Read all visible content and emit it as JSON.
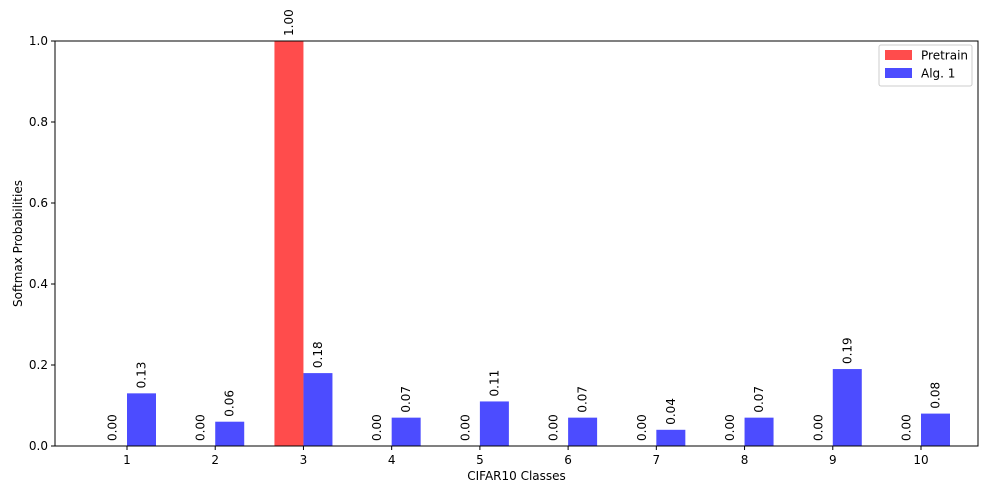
{
  "chart_data": {
    "type": "bar",
    "title": "",
    "xlabel": "CIFAR10 Classes",
    "ylabel": "Softmax Probabilities",
    "categories": [
      "1",
      "2",
      "3",
      "4",
      "5",
      "6",
      "7",
      "8",
      "9",
      "10"
    ],
    "ylim": [
      0,
      1.0
    ],
    "yticks": [
      "0.0",
      "0.2",
      "0.4",
      "0.6",
      "0.8",
      "1.0"
    ],
    "series": [
      {
        "name": "Pretrain",
        "color": "#ff4c4c",
        "values": [
          0.0,
          0.0,
          1.0,
          0.0,
          0.0,
          0.0,
          0.0,
          0.0,
          0.0,
          0.0
        ],
        "labels": [
          "0.00",
          "0.00",
          "1.00",
          "0.00",
          "0.00",
          "0.00",
          "0.00",
          "0.00",
          "0.00",
          "0.00"
        ]
      },
      {
        "name": "Alg. 1",
        "color": "#4c4cff",
        "values": [
          0.13,
          0.06,
          0.18,
          0.07,
          0.11,
          0.07,
          0.04,
          0.07,
          0.19,
          0.08
        ],
        "labels": [
          "0.13",
          "0.06",
          "0.18",
          "0.07",
          "0.11",
          "0.07",
          "0.04",
          "0.07",
          "0.19",
          "0.08"
        ]
      }
    ],
    "legend_position": "top-right",
    "grid": false
  }
}
